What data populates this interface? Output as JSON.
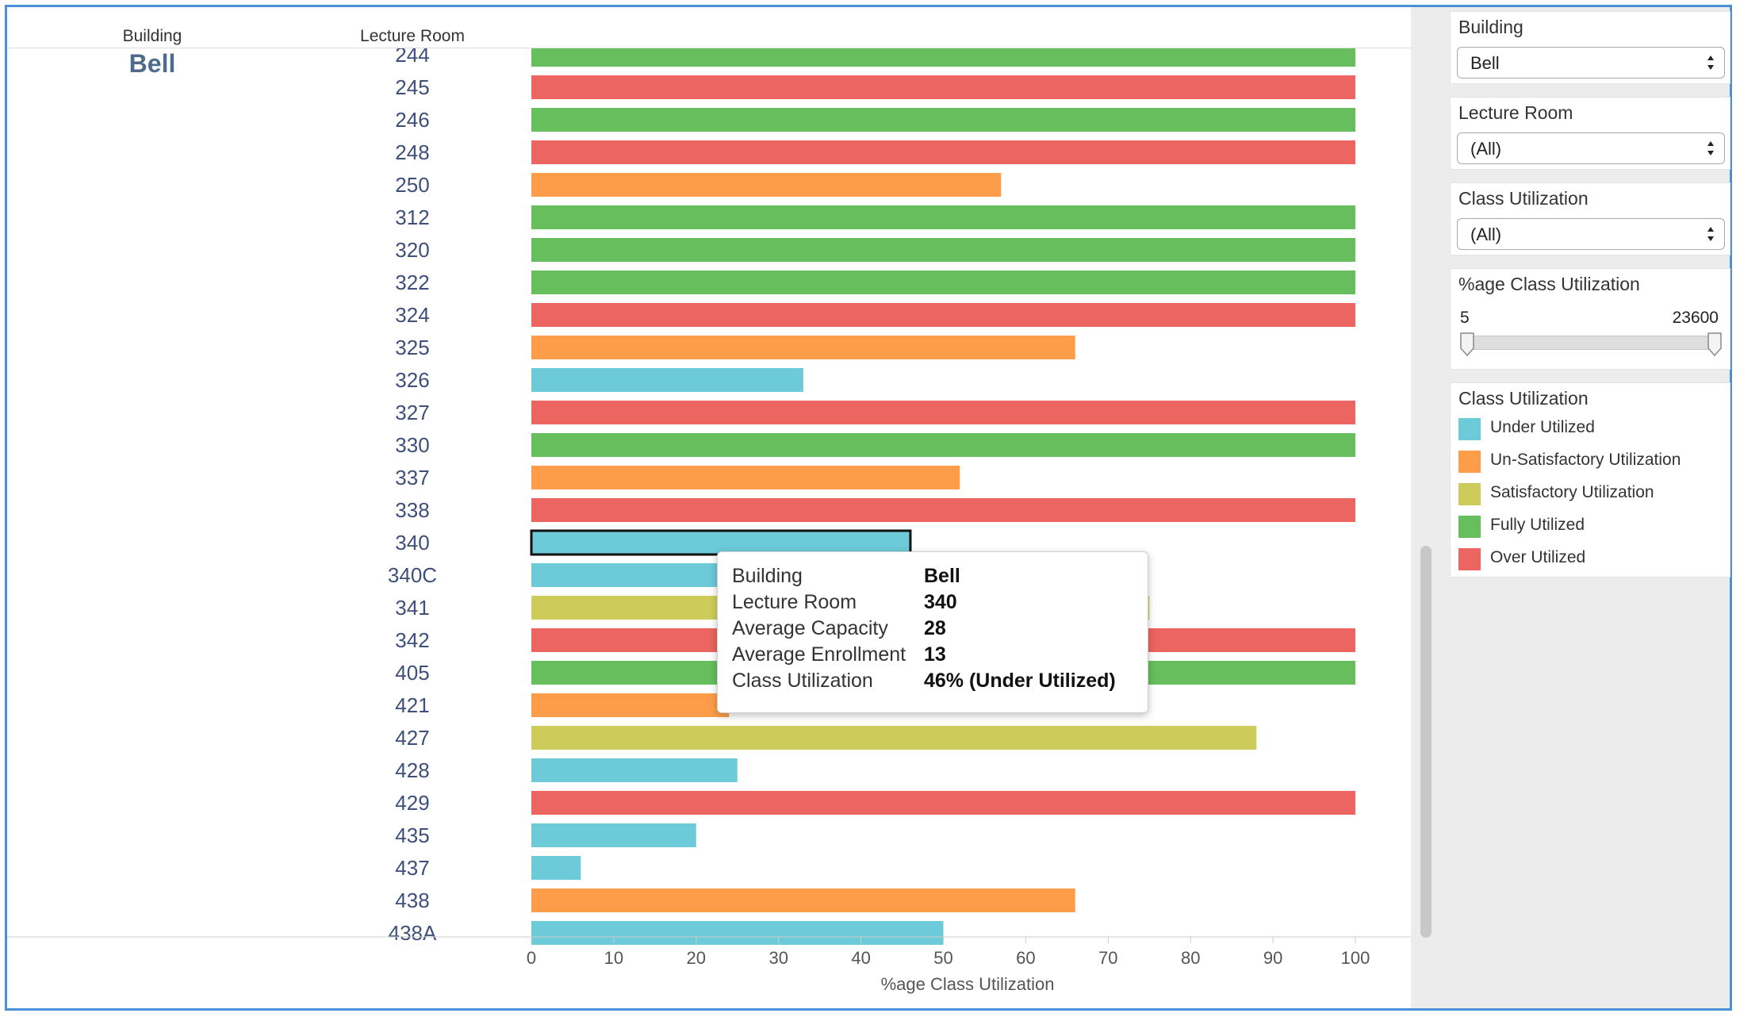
{
  "header": {
    "building_label": "Building",
    "room_label": "Lecture Room",
    "building_value": "Bell"
  },
  "chart_data": {
    "type": "bar",
    "orientation": "horizontal",
    "categories": [
      "245",
      "246",
      "248",
      "250",
      "312",
      "320",
      "322",
      "324",
      "325",
      "326",
      "327",
      "330",
      "337",
      "338",
      "340",
      "340C",
      "341",
      "342",
      "405",
      "421",
      "427",
      "428",
      "429",
      "435",
      "437",
      "438",
      "438A"
    ],
    "values": [
      100,
      100,
      100,
      57,
      100,
      100,
      100,
      100,
      66,
      33,
      100,
      100,
      52,
      100,
      46,
      24,
      75,
      100,
      100,
      24,
      88,
      25,
      100,
      20,
      6,
      66,
      50
    ],
    "utilization": [
      "Over Utilized",
      "Fully Utilized",
      "Over Utilized",
      "Un-Satisfactory Utilization",
      "Fully Utilized",
      "Fully Utilized",
      "Fully Utilized",
      "Over Utilized",
      "Un-Satisfactory Utilization",
      "Under Utilized",
      "Over Utilized",
      "Fully Utilized",
      "Un-Satisfactory Utilization",
      "Over Utilized",
      "Under Utilized",
      "Under Utilized",
      "Satisfactory Utilization",
      "Over Utilized",
      "Fully Utilized",
      "Un-Satisfactory Utilization",
      "Satisfactory Utilization",
      "Under Utilized",
      "Over Utilized",
      "Under Utilized",
      "Under Utilized",
      "Un-Satisfactory Utilization",
      "Under Utilized"
    ],
    "partial_top_row": {
      "category": "244",
      "value": 100,
      "utilization": "Fully Utilized"
    },
    "selected": "340",
    "xlabel": "%age Class Utilization",
    "ylabel": "Lecture Room",
    "xlim": [
      0,
      100
    ],
    "xticks": [
      0,
      10,
      20,
      30,
      40,
      50,
      60,
      70,
      80,
      90,
      100
    ],
    "grid": false
  },
  "colors": {
    "Under Utilized": "#6ccad9",
    "Un-Satisfactory Utilization": "#fd9d4a",
    "Satisfactory Utilization": "#cdcc5b",
    "Fully Utilized": "#66be5c",
    "Over Utilized": "#ec6560",
    "label_text": "#3d4f7a",
    "frame": "#4a90d9"
  },
  "tooltip": {
    "rows": [
      {
        "key": "Building",
        "value": "Bell"
      },
      {
        "key": "Lecture Room",
        "value": "340"
      },
      {
        "key": "Average Capacity",
        "value": "28"
      },
      {
        "key": "Average Enrollment",
        "value": "13"
      },
      {
        "key": "Class Utilization",
        "value": "46% (Under Utilized)"
      }
    ]
  },
  "filters": {
    "building": {
      "title": "Building",
      "value": "Bell"
    },
    "lecture_room": {
      "title": "Lecture Room",
      "value": "(All)"
    },
    "class_utilization": {
      "title": "Class Utilization",
      "value": "(All)"
    },
    "pct_range": {
      "title": "%age Class Utilization",
      "min": "5",
      "max": "23600"
    }
  },
  "legend": {
    "title": "Class Utilization",
    "items": [
      "Under Utilized",
      "Un-Satisfactory Utilization",
      "Satisfactory Utilization",
      "Fully Utilized",
      "Over Utilized"
    ]
  }
}
